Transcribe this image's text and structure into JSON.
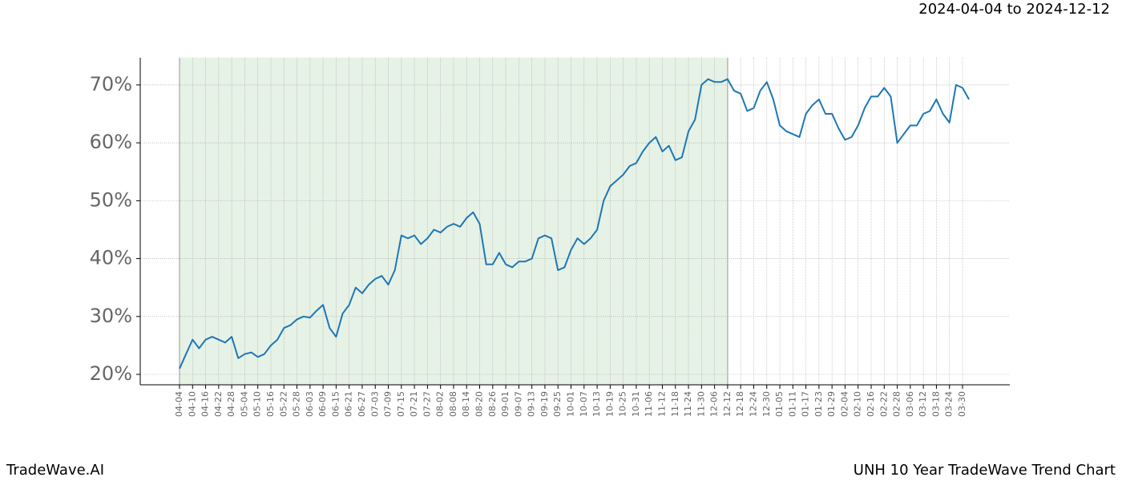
{
  "chart_data": {
    "type": "line",
    "title": "UNH 10 Year TradeWave Trend Chart",
    "subtitle": "2024-04-04 to 2024-12-12",
    "brand": "TradeWave.AI",
    "categories": [
      "04-04",
      null,
      "04-10",
      null,
      "04-16",
      null,
      "04-22",
      null,
      "04-28",
      null,
      "05-04",
      null,
      "05-10",
      null,
      "05-16",
      null,
      "05-22",
      null,
      "05-28",
      null,
      "06-03",
      null,
      "06-09",
      null,
      "06-15",
      null,
      "06-21",
      null,
      "06-27",
      null,
      "07-03",
      null,
      "07-09",
      null,
      "07-15",
      null,
      "07-21",
      null,
      "07-27",
      null,
      "08-02",
      null,
      "08-08",
      null,
      "08-14",
      null,
      "08-20",
      null,
      "08-26",
      null,
      "09-01",
      null,
      "09-07",
      null,
      "09-13",
      null,
      "09-19",
      null,
      "09-25",
      null,
      "10-01",
      null,
      "10-07",
      null,
      "10-13",
      null,
      "10-19",
      null,
      "10-25",
      null,
      "10-31",
      null,
      "11-06",
      null,
      "11-12",
      null,
      "11-18",
      null,
      "11-24",
      null,
      "11-30",
      null,
      "12-06",
      null,
      "12-12",
      null,
      "12-18",
      null,
      "12-24",
      null,
      "12-30",
      null,
      "01-05",
      null,
      "01-11",
      null,
      "01-17",
      null,
      "01-23",
      null,
      "01-29",
      null,
      "02-04",
      null,
      "02-10",
      null,
      "02-16",
      null,
      "02-22",
      null,
      "02-28",
      null,
      "03-06",
      null,
      "03-12",
      null,
      "03-18",
      null,
      "03-24",
      null,
      "03-30",
      null
    ],
    "series": [
      {
        "name": "UNH",
        "color": "#1f77b4",
        "values": [
          21,
          23.5,
          26,
          24.5,
          26,
          26.5,
          26,
          25.5,
          26.5,
          22.8,
          23.5,
          23.8,
          23,
          23.5,
          25,
          26,
          28,
          28.5,
          29.5,
          30,
          29.8,
          31,
          32,
          28,
          26.5,
          30.5,
          32,
          35,
          34,
          35.5,
          36.5,
          37,
          35.5,
          38,
          44,
          43.5,
          44,
          42.5,
          43.5,
          45,
          44.5,
          45.5,
          46,
          45.5,
          47,
          48,
          46,
          39,
          39,
          41,
          39,
          38.5,
          39.5,
          39.5,
          40,
          43.5,
          44,
          43.5,
          38,
          38.5,
          41.5,
          43.5,
          42.5,
          43.5,
          45,
          50,
          52.5,
          53.5,
          54.5,
          56,
          56.5,
          58.5,
          60,
          61,
          58.5,
          59.5,
          57,
          57.5,
          62,
          64,
          70,
          71,
          70.5,
          70.5,
          71,
          69,
          68.5,
          65.5,
          66,
          69,
          70.5,
          67.5,
          63,
          62,
          61.5,
          61,
          65,
          66.5,
          67.5,
          65,
          65,
          62.5,
          60.5,
          61,
          63,
          66,
          68,
          68,
          69.5,
          68,
          60,
          61.5,
          63,
          63,
          65,
          65.5,
          67.5,
          65,
          63.5,
          70,
          69.5,
          67.5
        ]
      }
    ],
    "highlight": {
      "from": "04-04",
      "to": "12-12",
      "color": "#e6f2e6"
    },
    "ylim": [
      18.2,
      74.7
    ],
    "yticks": [
      {
        "value": 20,
        "label": "20%"
      },
      {
        "value": 30,
        "label": "30%"
      },
      {
        "value": 40,
        "label": "40%"
      },
      {
        "value": 50,
        "label": "50%"
      },
      {
        "value": 60,
        "label": "60%"
      },
      {
        "value": 70,
        "label": "70%"
      }
    ],
    "grid": true
  }
}
